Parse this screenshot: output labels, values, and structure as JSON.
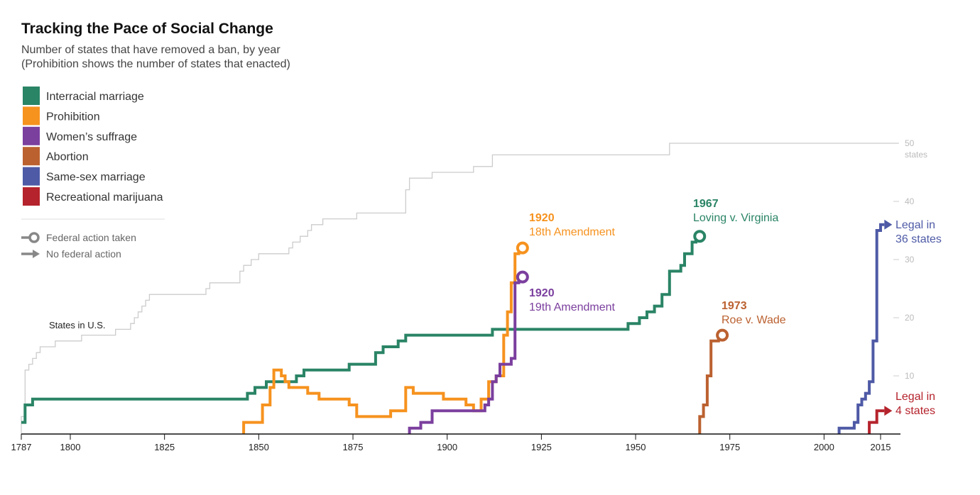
{
  "chart_data": {
    "type": "line",
    "step": true,
    "title": "Tracking the Pace of Social Change",
    "subtitle_lines": [
      "Number of states that have removed a ban, by year",
      "(Prohibition shows the number of states that enacted)"
    ],
    "xlim": [
      1787,
      2020
    ],
    "ylim": [
      0,
      50
    ],
    "x_ticks": [
      1787,
      1800,
      1825,
      1850,
      1875,
      1900,
      1925,
      1950,
      1975,
      2000,
      2015
    ],
    "y_ticks": [
      {
        "value": 10,
        "label": "10"
      },
      {
        "value": 20,
        "label": "20"
      },
      {
        "value": 30,
        "label": "30"
      },
      {
        "value": 40,
        "label": "40"
      },
      {
        "value": 50,
        "label": "50",
        "sub": "states"
      }
    ],
    "states_in_us": {
      "name": "States in U.S.",
      "color": "#cccccc",
      "x": [
        1787,
        1788,
        1789,
        1790,
        1791,
        1792,
        1796,
        1803,
        1812,
        1816,
        1817,
        1818,
        1819,
        1820,
        1821,
        1836,
        1837,
        1845,
        1846,
        1848,
        1850,
        1858,
        1859,
        1861,
        1863,
        1864,
        1867,
        1876,
        1889,
        1890,
        1896,
        1907,
        1912,
        1959
      ],
      "y": [
        3,
        11,
        12,
        13,
        14,
        15,
        16,
        17,
        18,
        19,
        20,
        21,
        22,
        23,
        24,
        25,
        26,
        28,
        29,
        30,
        31,
        32,
        33,
        34,
        35,
        36,
        37,
        38,
        42,
        44,
        45,
        46,
        48,
        50
      ]
    },
    "series": [
      {
        "name": "Interracial marriage",
        "color": "#2a8466",
        "end": "circle",
        "x": [
          1787,
          1788,
          1790,
          1843,
          1847,
          1849,
          1852,
          1856,
          1860,
          1862,
          1874,
          1881,
          1883,
          1887,
          1889,
          1912,
          1948,
          1951,
          1953,
          1955,
          1957,
          1959,
          1962,
          1963,
          1965,
          1966,
          1967
        ],
        "y": [
          2,
          5,
          6,
          6,
          7,
          8,
          9,
          9,
          10,
          11,
          12,
          14,
          15,
          16,
          17,
          18,
          19,
          20,
          21,
          22,
          24,
          28,
          29,
          31,
          33,
          34,
          34
        ]
      },
      {
        "name": "Prohibition",
        "color": "#f6921e",
        "end": "circle",
        "x": [
          1846,
          1847,
          1851,
          1853,
          1854,
          1855,
          1856,
          1857,
          1858,
          1863,
          1866,
          1874,
          1876,
          1880,
          1885,
          1889,
          1891,
          1899,
          1905,
          1907,
          1909,
          1911,
          1913,
          1915,
          1916,
          1917,
          1918,
          1919,
          1920
        ],
        "y": [
          2,
          2,
          5,
          8,
          11,
          11,
          10,
          9,
          8,
          7,
          6,
          5,
          3,
          3,
          4,
          8,
          7,
          6,
          5,
          4,
          6,
          9,
          10,
          17,
          21,
          26,
          31,
          32,
          32
        ],
        "y_start": 0
      },
      {
        "name": "Women’s suffrage",
        "color": "#7b3f9e",
        "end": "circle",
        "x": [
          1890,
          1893,
          1896,
          1910,
          1911,
          1912,
          1913,
          1914,
          1915,
          1917,
          1918,
          1919,
          1920
        ],
        "y": [
          1,
          2,
          4,
          5,
          6,
          9,
          10,
          12,
          12,
          13,
          26,
          27,
          27
        ],
        "y_start": 0
      },
      {
        "name": "Abortion",
        "color": "#bb6130",
        "end": "circle",
        "x": [
          1967,
          1968,
          1969,
          1970,
          1971,
          1972,
          1973
        ],
        "y": [
          3,
          5,
          10,
          16,
          16,
          17,
          17
        ],
        "y_start": 0
      },
      {
        "name": "Same-sex marriage",
        "color": "#4e5aa6",
        "end": "arrow",
        "x": [
          2004,
          2008,
          2009,
          2010,
          2011,
          2012,
          2013,
          2014,
          2015,
          2016
        ],
        "y": [
          1,
          2,
          5,
          6,
          7,
          9,
          16,
          35,
          36,
          36
        ],
        "y_start": 0
      },
      {
        "name": "Recreational marijuana",
        "color": "#b5232c",
        "end": "arrow",
        "x": [
          2012,
          2014,
          2015,
          2016
        ],
        "y": [
          2,
          4,
          4,
          4
        ],
        "y_start": 0
      }
    ],
    "annotations": [
      {
        "series": "Prohibition",
        "year": "1920",
        "text": "18th Amendment",
        "color": "#f6921e"
      },
      {
        "series": "Women’s suffrage",
        "year": "1920",
        "text": "19th Amendment",
        "color": "#7b3f9e"
      },
      {
        "series": "Interracial marriage",
        "year": "1967",
        "text": "Loving v. Virginia",
        "color": "#2a8466"
      },
      {
        "series": "Abortion",
        "year": "1973",
        "text": "Roe v. Wade",
        "color": "#bb6130"
      },
      {
        "series": "Same-sex marriage",
        "year": "Legal in",
        "text": "36 states",
        "color": "#4e5aa6"
      },
      {
        "series": "Recreational marijuana",
        "year": "Legal in",
        "text": "4 states",
        "color": "#b5232c"
      }
    ],
    "marker_legend": [
      {
        "icon": "circle",
        "label": "Federal action taken"
      },
      {
        "icon": "arrow",
        "label": "No federal action"
      }
    ],
    "marker_color": "#888888"
  }
}
